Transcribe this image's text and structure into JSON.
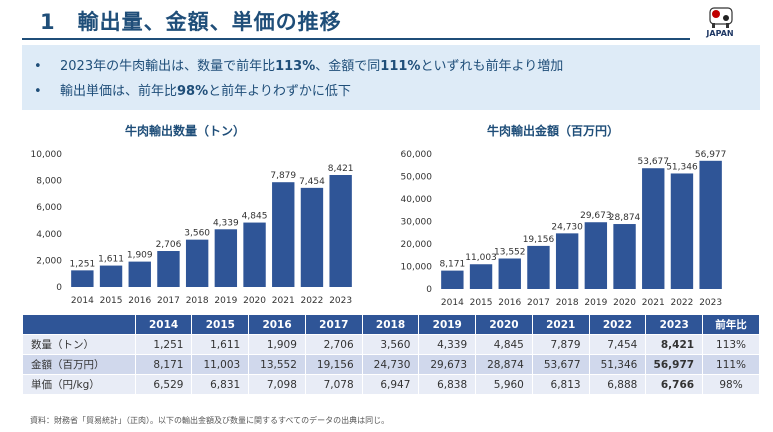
{
  "header": {
    "title": "1　輸出量、金額、単価の推移",
    "logo_text": "JAPAN"
  },
  "summary": {
    "bullet1_pre": "2023年の牛肉輸出は、数量で前年比",
    "bullet1_v1": "113%",
    "bullet1_mid": "、金額で同",
    "bullet1_v2": "111%",
    "bullet1_post": "といずれも前年より増加",
    "bullet2_pre": "輸出単価は、前年比",
    "bullet2_v": "98%",
    "bullet2_post": "と前年よりわずかに低下"
  },
  "colors": {
    "bar": "#2f5597",
    "header": "#1f4e79"
  },
  "chart_data": [
    {
      "type": "bar",
      "title": "牛肉輸出数量（トン）",
      "categories": [
        "2014",
        "2015",
        "2016",
        "2017",
        "2018",
        "2019",
        "2020",
        "2021",
        "2022",
        "2023"
      ],
      "values": [
        1251,
        1611,
        1909,
        2706,
        3560,
        4339,
        4845,
        7879,
        7454,
        8421
      ],
      "labels": [
        "1,251",
        "1,611",
        "1,909",
        "2,706",
        "3,560",
        "4,339",
        "4,845",
        "7,879",
        "7,454",
        "8,421"
      ],
      "yticks": [
        "0",
        "2,000",
        "4,000",
        "6,000",
        "8,000",
        "10,000"
      ],
      "ylim": [
        0,
        10000
      ]
    },
    {
      "type": "bar",
      "title": "牛肉輸出金額（百万円）",
      "categories": [
        "2014",
        "2015",
        "2016",
        "2017",
        "2018",
        "2019",
        "2020",
        "2021",
        "2022",
        "2023"
      ],
      "values": [
        8171,
        11003,
        13552,
        19156,
        24730,
        29673,
        28874,
        53677,
        51346,
        56977
      ],
      "labels": [
        "8,171",
        "11,003",
        "13,552",
        "19,156",
        "24,730",
        "29,673",
        "28,874",
        "53,677",
        "51,346",
        "56,977"
      ],
      "yticks": [
        "0",
        "10,000",
        "20,000",
        "30,000",
        "40,000",
        "50,000",
        "60,000"
      ],
      "ylim": [
        0,
        60000
      ]
    }
  ],
  "table": {
    "headers": [
      "",
      "2014",
      "2015",
      "2016",
      "2017",
      "2018",
      "2019",
      "2020",
      "2021",
      "2022",
      "2023",
      "前年比"
    ],
    "rows": [
      [
        "数量（トン）",
        "1,251",
        "1,611",
        "1,909",
        "2,706",
        "3,560",
        "4,339",
        "4,845",
        "7,879",
        "7,454",
        "8,421",
        "113%"
      ],
      [
        "金額（百万円）",
        "8,171",
        "11,003",
        "13,552",
        "19,156",
        "24,730",
        "29,673",
        "28,874",
        "53,677",
        "51,346",
        "56,977",
        "111%"
      ],
      [
        "単価（円/kg）",
        "6,529",
        "6,831",
        "7,098",
        "7,078",
        "6,947",
        "6,838",
        "5,960",
        "6,813",
        "6,888",
        "6,766",
        "98%"
      ]
    ]
  },
  "source": "資料：財務省「貿易統計」（正肉）。以下の輸出金額及び数量に関するすべてのデータの出典は同じ。"
}
